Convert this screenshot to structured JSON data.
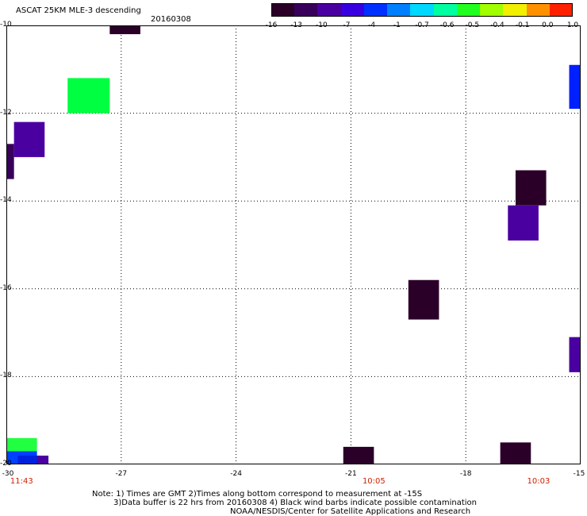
{
  "title": "ASCAT 25KM MLE-3 descending",
  "date": "20160308",
  "colorbar": {
    "labels": [
      "-16",
      "-13",
      "-10",
      "-7",
      "-4",
      "-1",
      "-0.7",
      "-0.6",
      "-0.5",
      "-0.4",
      "-0.1",
      "0.0",
      "1.0"
    ],
    "colors": [
      "#2a0028",
      "#38005a",
      "#4a00a0",
      "#3800e0",
      "#0030ff",
      "#0080ff",
      "#00d8ff",
      "#00ffa0",
      "#20ff20",
      "#a0ff00",
      "#f0f000",
      "#ff9000",
      "#ff2000"
    ]
  },
  "axes": {
    "lon_labels": [
      "-30",
      "-27",
      "-24",
      "-21",
      "-18",
      "-15"
    ],
    "lat_labels": [
      "-10",
      "-12",
      "-14",
      "-16",
      "-18",
      "-20"
    ],
    "lon_range": [
      -30,
      -15
    ],
    "lat_range": [
      -10,
      -20
    ]
  },
  "times": [
    {
      "label": "11:43",
      "lon": -29.6
    },
    {
      "label": "10:05",
      "lon": -20.4
    },
    {
      "label": "10:03",
      "lon": -16.1
    }
  ],
  "cells": [
    {
      "lon": [
        -27.3,
        -26.5
      ],
      "lat": [
        -10.0,
        -10.2
      ],
      "color": "#2a0028"
    },
    {
      "lon": [
        -28.4,
        -27.3
      ],
      "lat": [
        -11.2,
        -12.0
      ],
      "color": "#00ff40"
    },
    {
      "lon": [
        -29.8,
        -29.0
      ],
      "lat": [
        -12.2,
        -13.0
      ],
      "color": "#4a00a0"
    },
    {
      "lon": [
        -30.0,
        -29.8
      ],
      "lat": [
        -12.7,
        -13.5
      ],
      "color": "#38005a"
    },
    {
      "lon": [
        -15.3,
        -15.0
      ],
      "lat": [
        -10.9,
        -11.9
      ],
      "color": "#0020ff"
    },
    {
      "lon": [
        -15.0,
        -14.9
      ],
      "lat": [
        -11.9,
        -12.1
      ],
      "color": "#0020ff"
    },
    {
      "lon": [
        -16.7,
        -15.9
      ],
      "lat": [
        -13.3,
        -14.1
      ],
      "color": "#2a0028"
    },
    {
      "lon": [
        -16.9,
        -16.1
      ],
      "lat": [
        -14.1,
        -14.9
      ],
      "color": "#4a00a0"
    },
    {
      "lon": [
        -19.5,
        -18.7
      ],
      "lat": [
        -15.8,
        -16.7
      ],
      "color": "#2a0028"
    },
    {
      "lon": [
        -15.3,
        -14.8
      ],
      "lat": [
        -17.1,
        -17.9
      ],
      "color": "#4a00a0"
    },
    {
      "lon": [
        -21.2,
        -20.4
      ],
      "lat": [
        -19.6,
        -20.1
      ],
      "color": "#2a0028"
    },
    {
      "lon": [
        -17.1,
        -16.3
      ],
      "lat": [
        -19.5,
        -20.1
      ],
      "color": "#2a0028"
    },
    {
      "lon": [
        -30.0,
        -29.2
      ],
      "lat": [
        -19.4,
        -19.7
      ],
      "color": "#20ff40"
    },
    {
      "lon": [
        -30.0,
        -29.2
      ],
      "lat": [
        -19.7,
        -20.1
      ],
      "color": "#0040ff"
    },
    {
      "lon": [
        -29.7,
        -29.1
      ],
      "lat": [
        -19.8,
        -20.0
      ],
      "color": "#0020e0"
    },
    {
      "lon": [
        -29.2,
        -28.9
      ],
      "lat": [
        -19.8,
        -20.0
      ],
      "color": "#4a00a0"
    },
    {
      "lon": [
        -29.2,
        -28.8
      ],
      "lat": [
        -20.0,
        -20.1
      ],
      "color": "#0080ff"
    },
    {
      "lon": [
        -30.0,
        -29.7
      ],
      "lat": [
        -20.0,
        -20.1
      ],
      "color": "#0050ff"
    }
  ],
  "notes": [
    "Note: 1) Times are GMT 2)Times along bottom correspond to measurement at -15S",
    "3)Data buffer is 22 hrs from 20160308 4) Black wind barbs indicate possible contamination",
    "NOAA/NESDIS/Center for Satellite Applications and Research"
  ]
}
